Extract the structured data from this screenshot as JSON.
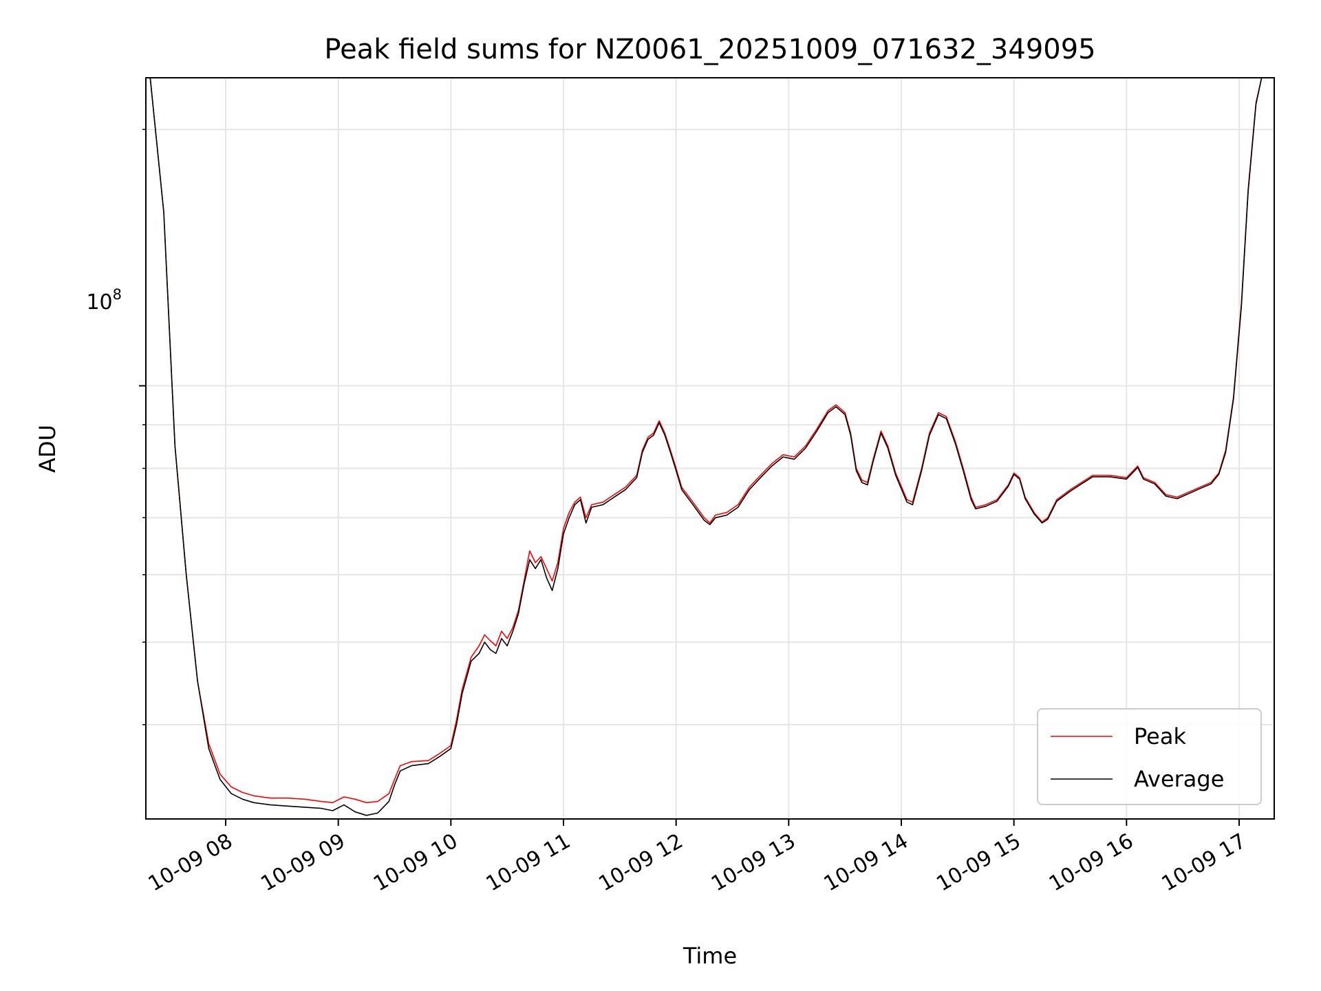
{
  "chart_data": {
    "type": "line",
    "title": "Peak field sums for NZ0061_20251009_071632_349095",
    "xlabel": "Time",
    "ylabel": "ADU",
    "y_scale": "log",
    "xlim_hours": [
      7.27,
      17.0
    ],
    "ylim": [
      31000000,
      230000000
    ],
    "x_ticks": [
      {
        "t": 8,
        "label": "10-09 08"
      },
      {
        "t": 9,
        "label": "10-09 09"
      },
      {
        "t": 10,
        "label": "10-09 10"
      },
      {
        "t": 11,
        "label": "10-09 11"
      },
      {
        "t": 12,
        "label": "10-09 12"
      },
      {
        "t": 13,
        "label": "10-09 13"
      },
      {
        "t": 14,
        "label": "10-09 14"
      },
      {
        "t": 15,
        "label": "10-09 15"
      },
      {
        "t": 16,
        "label": "10-09 16"
      },
      {
        "t": 17,
        "label": "10-09 17"
      }
    ],
    "y_major_ticks": [
      {
        "value": 100000000,
        "base": "10",
        "exponent": "8"
      }
    ],
    "y_minor_ticks": [
      40000000,
      50000000,
      60000000,
      70000000,
      80000000,
      90000000,
      200000000
    ],
    "grid": true,
    "legend_position": "lower right",
    "legend": [
      "Peak",
      "Average"
    ],
    "series": [
      {
        "name": "Peak",
        "color": "#ff0000",
        "points": [
          [
            7.33,
            230000000
          ],
          [
            7.45,
            160000000
          ],
          [
            7.55,
            85000000
          ],
          [
            7.65,
            60000000
          ],
          [
            7.75,
            45000000
          ],
          [
            7.85,
            38000000
          ],
          [
            7.95,
            35000000
          ],
          [
            8.05,
            33800000
          ],
          [
            8.15,
            33300000
          ],
          [
            8.25,
            33000000
          ],
          [
            8.4,
            32800000
          ],
          [
            8.55,
            32800000
          ],
          [
            8.7,
            32700000
          ],
          [
            8.85,
            32500000
          ],
          [
            8.95,
            32400000
          ],
          [
            9.05,
            32900000
          ],
          [
            9.15,
            32700000
          ],
          [
            9.25,
            32400000
          ],
          [
            9.35,
            32500000
          ],
          [
            9.45,
            33200000
          ],
          [
            9.5,
            34500000
          ],
          [
            9.55,
            35800000
          ],
          [
            9.65,
            36200000
          ],
          [
            9.8,
            36300000
          ],
          [
            9.9,
            37000000
          ],
          [
            10.0,
            37800000
          ],
          [
            10.05,
            40500000
          ],
          [
            10.1,
            44000000
          ],
          [
            10.18,
            48000000
          ],
          [
            10.25,
            49500000
          ],
          [
            10.3,
            51000000
          ],
          [
            10.35,
            50200000
          ],
          [
            10.4,
            49500000
          ],
          [
            10.45,
            51500000
          ],
          [
            10.5,
            50500000
          ],
          [
            10.55,
            52000000
          ],
          [
            10.6,
            54500000
          ],
          [
            10.65,
            59000000
          ],
          [
            10.7,
            64000000
          ],
          [
            10.75,
            62000000
          ],
          [
            10.8,
            63000000
          ],
          [
            10.85,
            61000000
          ],
          [
            10.9,
            59000000
          ],
          [
            10.95,
            62000000
          ],
          [
            11.0,
            68000000
          ],
          [
            11.05,
            71000000
          ],
          [
            11.1,
            73000000
          ],
          [
            11.15,
            74000000
          ],
          [
            11.2,
            70000000
          ],
          [
            11.25,
            72500000
          ],
          [
            11.35,
            73000000
          ],
          [
            11.45,
            74500000
          ],
          [
            11.55,
            76000000
          ],
          [
            11.65,
            78500000
          ],
          [
            11.7,
            84000000
          ],
          [
            11.75,
            87000000
          ],
          [
            11.8,
            88000000
          ],
          [
            11.85,
            91000000
          ],
          [
            11.9,
            88000000
          ],
          [
            11.95,
            84000000
          ],
          [
            12.0,
            80000000
          ],
          [
            12.05,
            76000000
          ],
          [
            12.15,
            73000000
          ],
          [
            12.25,
            70000000
          ],
          [
            12.3,
            69000000
          ],
          [
            12.35,
            70500000
          ],
          [
            12.45,
            71000000
          ],
          [
            12.55,
            72500000
          ],
          [
            12.65,
            76000000
          ],
          [
            12.75,
            78500000
          ],
          [
            12.85,
            81000000
          ],
          [
            12.95,
            83000000
          ],
          [
            13.05,
            82500000
          ],
          [
            13.15,
            85000000
          ],
          [
            13.25,
            89000000
          ],
          [
            13.35,
            93500000
          ],
          [
            13.42,
            95000000
          ],
          [
            13.5,
            93000000
          ],
          [
            13.55,
            88000000
          ],
          [
            13.6,
            80000000
          ],
          [
            13.65,
            77500000
          ],
          [
            13.7,
            77000000
          ],
          [
            13.75,
            82000000
          ],
          [
            13.82,
            88500000
          ],
          [
            13.88,
            85000000
          ],
          [
            13.95,
            79000000
          ],
          [
            14.05,
            73500000
          ],
          [
            14.1,
            73000000
          ],
          [
            14.18,
            80000000
          ],
          [
            14.25,
            88000000
          ],
          [
            14.33,
            93000000
          ],
          [
            14.4,
            92000000
          ],
          [
            14.48,
            86000000
          ],
          [
            14.55,
            80000000
          ],
          [
            14.62,
            74000000
          ],
          [
            14.66,
            72000000
          ],
          [
            14.75,
            72500000
          ],
          [
            14.85,
            73500000
          ],
          [
            14.95,
            76500000
          ],
          [
            15.0,
            79000000
          ],
          [
            15.05,
            78000000
          ],
          [
            15.1,
            74000000
          ],
          [
            15.18,
            71000000
          ],
          [
            15.25,
            69200000
          ],
          [
            15.3,
            70000000
          ],
          [
            15.38,
            73500000
          ],
          [
            15.5,
            75500000
          ],
          [
            15.6,
            77000000
          ],
          [
            15.7,
            78500000
          ],
          [
            15.85,
            78500000
          ],
          [
            16.0,
            78000000
          ],
          [
            16.1,
            80500000
          ],
          [
            16.15,
            78000000
          ],
          [
            16.25,
            77000000
          ],
          [
            16.35,
            74500000
          ],
          [
            16.45,
            74000000
          ],
          [
            16.55,
            75000000
          ],
          [
            16.65,
            76000000
          ],
          [
            16.75,
            77000000
          ],
          [
            16.82,
            79000000
          ],
          [
            16.88,
            84000000
          ],
          [
            16.95,
            97000000
          ],
          [
            17.02,
            125000000
          ],
          [
            17.08,
            170000000
          ],
          [
            17.15,
            215000000
          ],
          [
            17.2,
            230000000
          ]
        ]
      },
      {
        "name": "Average",
        "color": "#000000",
        "points": [
          [
            7.33,
            230000000
          ],
          [
            7.45,
            160000000
          ],
          [
            7.55,
            85000000
          ],
          [
            7.65,
            60000000
          ],
          [
            7.75,
            45000000
          ],
          [
            7.85,
            37500000
          ],
          [
            7.95,
            34500000
          ],
          [
            8.05,
            33200000
          ],
          [
            8.15,
            32700000
          ],
          [
            8.25,
            32400000
          ],
          [
            8.4,
            32200000
          ],
          [
            8.55,
            32100000
          ],
          [
            8.7,
            32000000
          ],
          [
            8.85,
            31900000
          ],
          [
            8.95,
            31700000
          ],
          [
            9.05,
            32200000
          ],
          [
            9.15,
            31600000
          ],
          [
            9.25,
            31300000
          ],
          [
            9.35,
            31500000
          ],
          [
            9.45,
            32500000
          ],
          [
            9.5,
            34000000
          ],
          [
            9.55,
            35300000
          ],
          [
            9.65,
            35800000
          ],
          [
            9.8,
            36000000
          ],
          [
            9.9,
            36700000
          ],
          [
            10.0,
            37500000
          ],
          [
            10.05,
            40000000
          ],
          [
            10.1,
            43500000
          ],
          [
            10.18,
            47500000
          ],
          [
            10.25,
            48500000
          ],
          [
            10.3,
            50000000
          ],
          [
            10.35,
            49000000
          ],
          [
            10.4,
            48500000
          ],
          [
            10.45,
            50500000
          ],
          [
            10.5,
            49500000
          ],
          [
            10.55,
            51500000
          ],
          [
            10.6,
            54000000
          ],
          [
            10.65,
            58500000
          ],
          [
            10.7,
            62500000
          ],
          [
            10.75,
            61000000
          ],
          [
            10.8,
            62500000
          ],
          [
            10.85,
            59500000
          ],
          [
            10.9,
            57500000
          ],
          [
            10.95,
            61000000
          ],
          [
            11.0,
            67000000
          ],
          [
            11.05,
            70000000
          ],
          [
            11.1,
            72500000
          ],
          [
            11.15,
            73500000
          ],
          [
            11.2,
            69000000
          ],
          [
            11.25,
            72000000
          ],
          [
            11.35,
            72500000
          ],
          [
            11.45,
            74000000
          ],
          [
            11.55,
            75500000
          ],
          [
            11.65,
            78000000
          ],
          [
            11.7,
            83500000
          ],
          [
            11.75,
            86500000
          ],
          [
            11.8,
            87500000
          ],
          [
            11.85,
            90500000
          ],
          [
            11.9,
            87500000
          ],
          [
            11.95,
            83500000
          ],
          [
            12.0,
            79500000
          ],
          [
            12.05,
            75500000
          ],
          [
            12.15,
            72500000
          ],
          [
            12.25,
            69500000
          ],
          [
            12.3,
            68700000
          ],
          [
            12.35,
            70000000
          ],
          [
            12.45,
            70500000
          ],
          [
            12.55,
            72000000
          ],
          [
            12.65,
            75500000
          ],
          [
            12.75,
            78000000
          ],
          [
            12.85,
            80500000
          ],
          [
            12.95,
            82500000
          ],
          [
            13.05,
            82000000
          ],
          [
            13.15,
            84500000
          ],
          [
            13.25,
            88500000
          ],
          [
            13.35,
            93000000
          ],
          [
            13.42,
            94500000
          ],
          [
            13.5,
            92500000
          ],
          [
            13.55,
            87500000
          ],
          [
            13.6,
            79500000
          ],
          [
            13.65,
            77000000
          ],
          [
            13.7,
            76500000
          ],
          [
            13.75,
            81500000
          ],
          [
            13.82,
            88000000
          ],
          [
            13.88,
            84500000
          ],
          [
            13.95,
            78500000
          ],
          [
            14.05,
            73000000
          ],
          [
            14.1,
            72500000
          ],
          [
            14.18,
            79500000
          ],
          [
            14.25,
            87500000
          ],
          [
            14.33,
            92500000
          ],
          [
            14.4,
            91500000
          ],
          [
            14.48,
            85500000
          ],
          [
            14.55,
            79500000
          ],
          [
            14.62,
            73500000
          ],
          [
            14.66,
            71700000
          ],
          [
            14.75,
            72200000
          ],
          [
            14.85,
            73200000
          ],
          [
            14.95,
            76200000
          ],
          [
            15.0,
            78700000
          ],
          [
            15.05,
            77700000
          ],
          [
            15.1,
            73700000
          ],
          [
            15.18,
            70700000
          ],
          [
            15.25,
            69000000
          ],
          [
            15.3,
            69700000
          ],
          [
            15.38,
            73200000
          ],
          [
            15.5,
            75200000
          ],
          [
            15.6,
            76700000
          ],
          [
            15.7,
            78200000
          ],
          [
            15.85,
            78200000
          ],
          [
            16.0,
            77700000
          ],
          [
            16.1,
            80200000
          ],
          [
            16.15,
            77700000
          ],
          [
            16.25,
            76700000
          ],
          [
            16.35,
            74200000
          ],
          [
            16.45,
            73700000
          ],
          [
            16.55,
            74700000
          ],
          [
            16.65,
            75700000
          ],
          [
            16.75,
            76700000
          ],
          [
            16.82,
            78700000
          ],
          [
            16.88,
            83500000
          ],
          [
            16.95,
            96500000
          ],
          [
            17.02,
            124000000
          ],
          [
            17.08,
            169000000
          ],
          [
            17.15,
            214000000
          ],
          [
            17.2,
            230000000
          ]
        ]
      }
    ]
  }
}
